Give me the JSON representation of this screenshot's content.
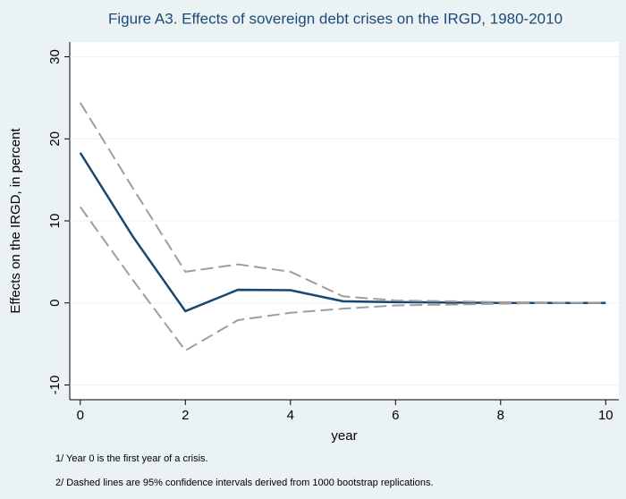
{
  "chart_data": {
    "type": "line",
    "title": "Figure A3. Effects of sovereign debt crises on the IRGD, 1980-2010",
    "x_label": "year",
    "y_label": "Effects on the IRGD, in percent",
    "notes": [
      "1/  Year 0 is the first year of a crisis.",
      "2/  Dashed lines are 95% confidence intervals derived from 1000 bootstrap replications."
    ],
    "x": [
      0,
      1,
      2,
      3,
      4,
      5,
      6,
      7,
      8,
      9,
      10
    ],
    "series": [
      {
        "color": "#1a476f",
        "dashed": false,
        "values": [
          18.3,
          8.1,
          -1.0,
          1.6,
          1.55,
          0.2,
          0.1,
          0.05,
          0,
          0,
          0
        ]
      },
      {
        "color": "#9e9e9e",
        "dashed": true,
        "values": [
          24.4,
          14.0,
          3.8,
          4.7,
          3.8,
          0.8,
          0.3,
          0.2,
          0.1,
          0.05,
          0
        ]
      },
      {
        "color": "#9e9e9e",
        "dashed": true,
        "values": [
          11.7,
          2.8,
          -5.8,
          -2.1,
          -1.2,
          -0.7,
          -0.3,
          -0.2,
          -0.1,
          0,
          0
        ]
      }
    ],
    "xlim": [
      -0.2,
      10.25
    ],
    "xticks": [
      0,
      2,
      4,
      6,
      8,
      10
    ],
    "ylim": [
      -11.8,
      31.8
    ],
    "yticks": [
      -10,
      0,
      10,
      20,
      30
    ],
    "grid": true
  }
}
